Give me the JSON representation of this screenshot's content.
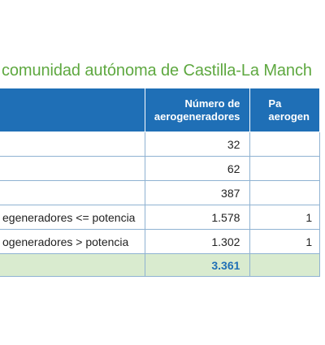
{
  "title": "comunidad autónoma de Castilla-La Manch",
  "table": {
    "headers": {
      "category": "",
      "num_line1": "Número de",
      "num_line2": "aerogeneradores",
      "par_line1": "Pa",
      "par_line2": "aerogen"
    },
    "rows": [
      {
        "category": "",
        "num": "32",
        "par": ""
      },
      {
        "category": "",
        "num": "62",
        "par": ""
      },
      {
        "category": "",
        "num": "387",
        "par": ""
      },
      {
        "category": "egeneradores <= potencia",
        "num": "1.578",
        "par": "1"
      },
      {
        "category": "ogeneradores > potencia",
        "num": "1.302",
        "par": "1"
      }
    ],
    "total": {
      "category": "",
      "num": "3.361",
      "par": ""
    }
  },
  "colors": {
    "title": "#5ea840",
    "header_bg": "#1f6fb6",
    "total_bg": "#d9ebcf",
    "border": "#8fb2d2"
  }
}
